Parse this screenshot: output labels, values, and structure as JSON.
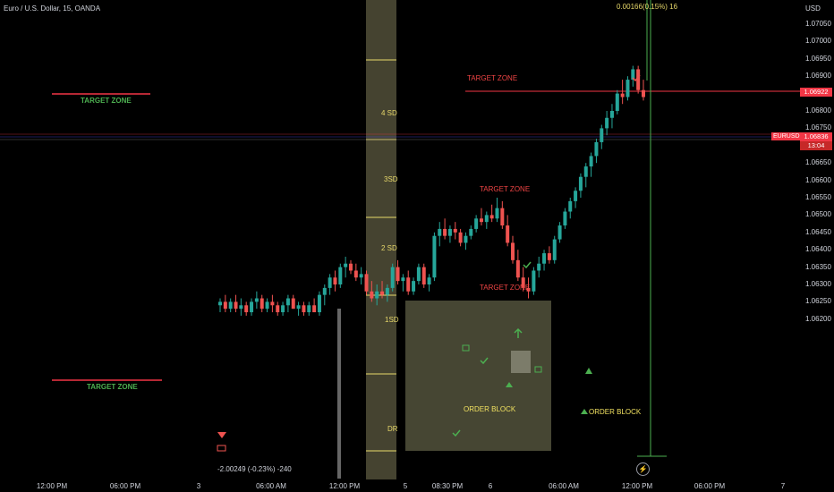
{
  "header": {
    "symbol": "Euro / U.S. Dollar, 15, OANDA",
    "currency": "USD",
    "readout": "0.00166(0.15%) 16"
  },
  "price_scale": {
    "labels": [
      "1.07050",
      "1.07000",
      "1.06950",
      "1.06900",
      "1.06850",
      "1.06800",
      "1.06750",
      "1.06700",
      "1.06650",
      "1.06600",
      "1.06550",
      "1.06500",
      "1.06450",
      "1.06400",
      "1.06350",
      "1.06300",
      "1.06250",
      "1.06200"
    ],
    "marker_price": "1.06922",
    "current_price": "1.06836",
    "countdown": "13:04",
    "symbol_tag": "EURUSD"
  },
  "time_scale": {
    "labels": [
      "12:00 PM",
      "06:00 PM",
      "3",
      "06:00 AM",
      "12:00 PM",
      "5",
      "08:30 PM",
      "6",
      "06:00 AM",
      "12:00 PM",
      "06:00 PM",
      "7"
    ]
  },
  "annotations": {
    "target_zone": "TARGET ZONE",
    "order_block": "ORDER BLOCK",
    "sd_labels": [
      "4 SD",
      "3SD",
      "2 SD",
      "1SD",
      "DR"
    ]
  },
  "bottom_stat": "-2.00249 (-0.23%) -240",
  "colors": {
    "up": "#26a69a",
    "down": "#ef5350",
    "zone_fill": "#4a4a36",
    "sd_line": "#e7d86a",
    "target_red": "#f23645"
  },
  "chart_data": {
    "type": "candlestick",
    "symbol": "EURUSD",
    "timeframe": "15",
    "ylim": [
      1.0619,
      1.0709
    ],
    "last_price": 1.06836,
    "target_price": 1.06922,
    "candles": [
      [
        1.0624,
        1.0626,
        1.0622,
        1.0625
      ],
      [
        1.0625,
        1.0627,
        1.0622,
        1.0623
      ],
      [
        1.0623,
        1.0626,
        1.0622,
        1.0625
      ],
      [
        1.0625,
        1.0627,
        1.0622,
        1.0623
      ],
      [
        1.0623,
        1.0626,
        1.0621,
        1.0624
      ],
      [
        1.0624,
        1.0625,
        1.0621,
        1.0622
      ],
      [
        1.0622,
        1.0626,
        1.0621,
        1.0625
      ],
      [
        1.0625,
        1.0628,
        1.0623,
        1.0626
      ],
      [
        1.0626,
        1.0627,
        1.0622,
        1.0623
      ],
      [
        1.0623,
        1.0626,
        1.0622,
        1.0625
      ],
      [
        1.0625,
        1.0627,
        1.0622,
        1.0624
      ],
      [
        1.0624,
        1.0625,
        1.0621,
        1.0622
      ],
      [
        1.0622,
        1.0625,
        1.0621,
        1.0624
      ],
      [
        1.0624,
        1.0627,
        1.0622,
        1.0626
      ],
      [
        1.0626,
        1.0627,
        1.0623,
        1.0623
      ],
      [
        1.0623,
        1.0625,
        1.0621,
        1.0624
      ],
      [
        1.0624,
        1.0625,
        1.0621,
        1.0622
      ],
      [
        1.0622,
        1.0625,
        1.0621,
        1.0624
      ],
      [
        1.0624,
        1.0626,
        1.0622,
        1.0622
      ],
      [
        1.0622,
        1.0628,
        1.0621,
        1.0627
      ],
      [
        1.0627,
        1.063,
        1.0624,
        1.0629
      ],
      [
        1.0629,
        1.0633,
        1.0627,
        1.0632
      ],
      [
        1.0632,
        1.0634,
        1.0628,
        1.063
      ],
      [
        1.063,
        1.0636,
        1.0629,
        1.0635
      ],
      [
        1.0635,
        1.0638,
        1.0632,
        1.0636
      ],
      [
        1.0636,
        1.0637,
        1.0633,
        1.0634
      ],
      [
        1.0634,
        1.0636,
        1.0631,
        1.0632
      ],
      [
        1.0632,
        1.0635,
        1.063,
        1.0633
      ],
      [
        1.0633,
        1.0634,
        1.0627,
        1.0628
      ],
      [
        1.0628,
        1.0631,
        1.0625,
        1.0626
      ],
      [
        1.0626,
        1.063,
        1.0624,
        1.0628
      ],
      [
        1.0628,
        1.0631,
        1.0626,
        1.0627
      ],
      [
        1.0627,
        1.063,
        1.0625,
        1.0629
      ],
      [
        1.0629,
        1.0636,
        1.0628,
        1.0635
      ],
      [
        1.0635,
        1.0637,
        1.063,
        1.0631
      ],
      [
        1.0631,
        1.0633,
        1.0628,
        1.0632
      ],
      [
        1.0632,
        1.0634,
        1.0627,
        1.0628
      ],
      [
        1.0628,
        1.0632,
        1.0627,
        1.0631
      ],
      [
        1.0631,
        1.0636,
        1.063,
        1.0635
      ],
      [
        1.0635,
        1.0636,
        1.0629,
        1.063
      ],
      [
        1.063,
        1.0633,
        1.0628,
        1.0632
      ],
      [
        1.0632,
        1.0645,
        1.0631,
        1.0644
      ],
      [
        1.0644,
        1.0648,
        1.0641,
        1.0646
      ],
      [
        1.0646,
        1.0649,
        1.0643,
        1.0644
      ],
      [
        1.0644,
        1.0647,
        1.0642,
        1.0646
      ],
      [
        1.0646,
        1.0648,
        1.0643,
        1.0645
      ],
      [
        1.0645,
        1.0646,
        1.0641,
        1.0642
      ],
      [
        1.0642,
        1.0645,
        1.064,
        1.0644
      ],
      [
        1.0644,
        1.0647,
        1.0643,
        1.0646
      ],
      [
        1.0646,
        1.065,
        1.0645,
        1.0649
      ],
      [
        1.0649,
        1.0652,
        1.0647,
        1.0648
      ],
      [
        1.0648,
        1.0651,
        1.0646,
        1.065
      ],
      [
        1.065,
        1.0653,
        1.0648,
        1.0649
      ],
      [
        1.0649,
        1.0655,
        1.0648,
        1.0652
      ],
      [
        1.0652,
        1.0654,
        1.0646,
        1.0647
      ],
      [
        1.0647,
        1.065,
        1.0641,
        1.0642
      ],
      [
        1.0642,
        1.0644,
        1.0636,
        1.0637
      ],
      [
        1.0637,
        1.064,
        1.0631,
        1.0632
      ],
      [
        1.0632,
        1.0635,
        1.0628,
        1.0629
      ],
      [
        1.0629,
        1.0632,
        1.0626,
        1.0628
      ],
      [
        1.0628,
        1.0635,
        1.0627,
        1.0634
      ],
      [
        1.0634,
        1.0638,
        1.0632,
        1.0636
      ],
      [
        1.0636,
        1.064,
        1.0634,
        1.0639
      ],
      [
        1.0639,
        1.0641,
        1.0636,
        1.0637
      ],
      [
        1.0637,
        1.0644,
        1.0636,
        1.0643
      ],
      [
        1.0643,
        1.0648,
        1.0642,
        1.0647
      ],
      [
        1.0647,
        1.0652,
        1.0646,
        1.0651
      ],
      [
        1.0651,
        1.0655,
        1.0649,
        1.0654
      ],
      [
        1.0654,
        1.0658,
        1.0652,
        1.0657
      ],
      [
        1.0657,
        1.0662,
        1.0655,
        1.0661
      ],
      [
        1.0661,
        1.0665,
        1.0658,
        1.0664
      ],
      [
        1.0664,
        1.0668,
        1.0661,
        1.0667
      ],
      [
        1.0667,
        1.0672,
        1.0665,
        1.0671
      ],
      [
        1.0671,
        1.0676,
        1.0669,
        1.0675
      ],
      [
        1.0675,
        1.068,
        1.0673,
        1.0678
      ],
      [
        1.0678,
        1.0682,
        1.0675,
        1.068
      ],
      [
        1.068,
        1.0686,
        1.0679,
        1.0685
      ],
      [
        1.0685,
        1.0689,
        1.0682,
        1.0684
      ],
      [
        1.0684,
        1.069,
        1.0683,
        1.0689
      ],
      [
        1.0689,
        1.0693,
        1.0687,
        1.0692
      ],
      [
        1.0692,
        1.0693,
        1.0685,
        1.0686
      ],
      [
        1.0686,
        1.0689,
        1.0683,
        1.0684
      ]
    ]
  }
}
